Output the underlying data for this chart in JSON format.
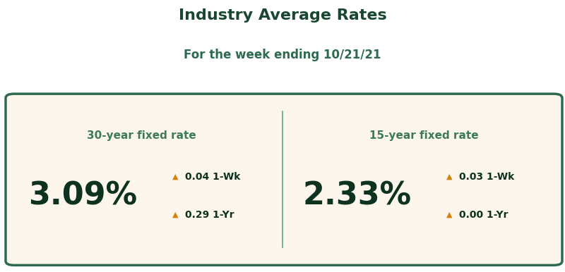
{
  "title": "Industry Average Rates",
  "subtitle": "For the week ending 10/21/21",
  "bg_color": "#0a2e1a",
  "card_bg_color": "#fdf6ec",
  "card_border_color": "#2d6a4f",
  "title_color": "#1a4731",
  "subtitle_color": "#2d6a4f",
  "label_color": "#3d7a5a",
  "rate_color": "#0d3320",
  "arrow_color": "#d4820a",
  "divider_color": "#5aaa7a",
  "left_label": "30-year fixed rate",
  "left_rate": "3.09%",
  "left_1wk": "0.04 1-Wk",
  "left_1yr": "0.29 1-Yr",
  "right_label": "15-year fixed rate",
  "right_rate": "2.33%",
  "right_1wk": "0.03 1-Wk",
  "right_1yr": "0.00 1-Yr",
  "title_fontsize": 16,
  "subtitle_fontsize": 12,
  "label_fontsize": 11,
  "rate_fontsize": 32,
  "delta_fontsize": 10,
  "arrow_fontsize": 8
}
